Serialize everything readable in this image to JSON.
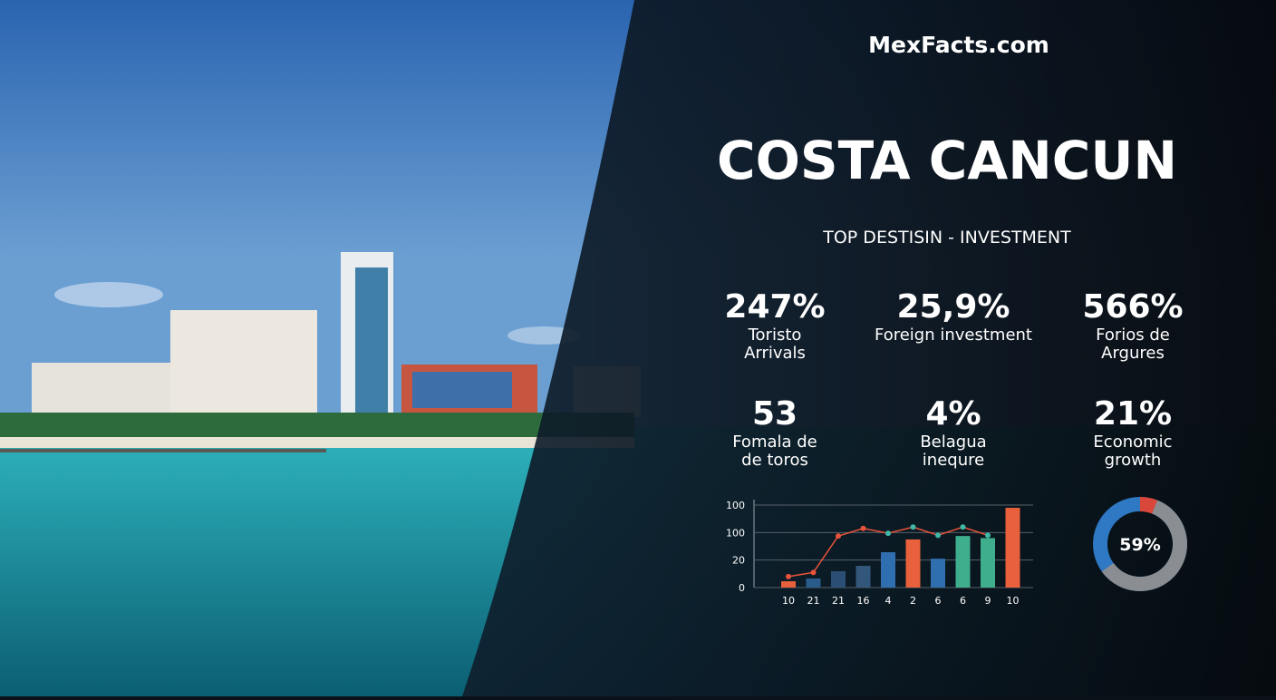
{
  "header": {
    "brand": "MexFacts.com"
  },
  "title": "COSTA CANCUN",
  "subtitle": "TOP DESTISIN - INVESTMENT",
  "stats": [
    {
      "value": "247%",
      "label": [
        "Toristo",
        "Arrivals"
      ]
    },
    {
      "value": "25,9%",
      "label": [
        "Foreign investment"
      ]
    },
    {
      "value": "566%",
      "label": [
        "Forios de",
        "Argures"
      ]
    },
    {
      "value": "53",
      "label": [
        "Fomala de",
        "de toros"
      ]
    },
    {
      "value": "4%",
      "label": [
        "Belagua",
        "inequre"
      ]
    },
    {
      "value": "21%",
      "label": [
        "Economic",
        "growth"
      ]
    }
  ],
  "chart_data": {
    "type": "bar",
    "categories": [
      "10",
      "21",
      "21",
      "16",
      "4",
      "2",
      "6",
      "6",
      "9",
      "10"
    ],
    "values": [
      4.6,
      6.6,
      11.9,
      15.8,
      25.7,
      35,
      21,
      37.5,
      36,
      58
    ],
    "colors": [
      "#e8603c",
      "#2b5b8a",
      "#2b4f74",
      "#33577a",
      "#2f6fb0",
      "#e8603c",
      "#2f6fb0",
      "#3fae8c",
      "#3fae8c",
      "#e8603c"
    ],
    "line": {
      "values": [
        8,
        11,
        37.5,
        43,
        39.5,
        44,
        38,
        44,
        38,
        null
      ],
      "colors": [
        "#e8533a",
        "#e8533a",
        "#e8533a",
        "#e8533a",
        "#3fb8a8",
        "#3fb8a8",
        "#3fb8a8",
        "#3fb8a8",
        "#3fb8a8",
        "#3fb8a8"
      ]
    },
    "ylim": [
      0,
      60
    ],
    "yticks": [
      0,
      20,
      {
        "value": 40,
        "label": "100"
      },
      {
        "value": 60,
        "label": "100"
      }
    ],
    "grid": true
  },
  "donut": {
    "value": 59,
    "label": "59%",
    "color": "#8a8d91",
    "rest_color": "#2f78c4"
  }
}
